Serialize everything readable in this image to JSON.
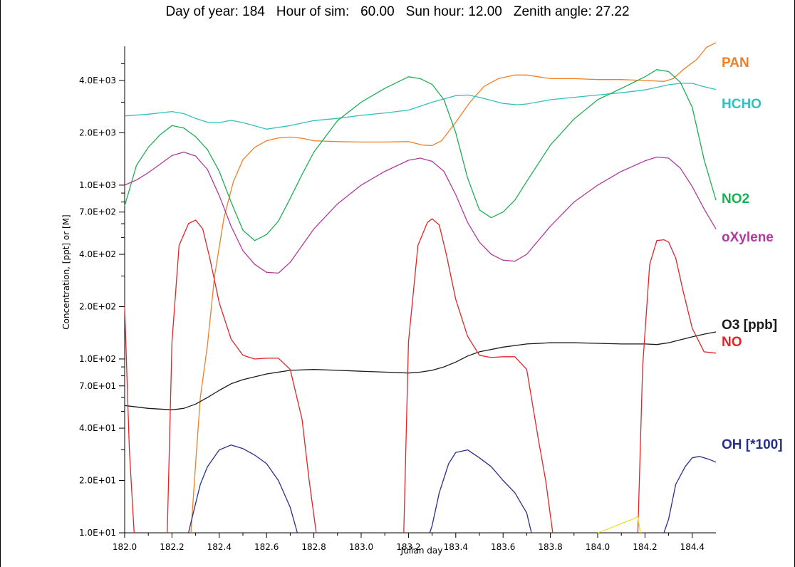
{
  "header": {
    "day_of_year": "Day of year: 184",
    "hour_of_sim": "Hour of sim:   60.00",
    "sun_hour": "Sun hour: 12.00",
    "zenith_angle": "Zenith angle: 27.22"
  },
  "chart_data": {
    "type": "line",
    "title": "",
    "xlabel": "Julian day",
    "ylabel": "Concentration, [ppt] or [M]",
    "xlim": [
      182.0,
      184.5
    ],
    "ylim": [
      10,
      6000
    ],
    "y_scale": "log",
    "grid": false,
    "x_ticks": [
      182.0,
      182.2,
      182.4,
      182.6,
      182.8,
      183.0,
      183.2,
      183.4,
      183.6,
      183.8,
      184.0,
      184.2,
      184.4
    ],
    "x_tick_labels": [
      "182.0",
      "182.2",
      "182.4",
      "182.6",
      "182.8",
      "183.0",
      "183.2",
      "183.4",
      "183.6",
      "183.8",
      "184.0",
      "184.2",
      "184.4"
    ],
    "y_ticks": [
      10,
      20,
      40,
      70,
      100,
      200,
      400,
      700,
      1000,
      2000,
      4000
    ],
    "y_tick_labels": [
      "1.0E+01",
      "2.0E+01",
      "4.0E+01",
      "7.0E+01",
      "1.0E+02",
      "2.0E+02",
      "4.0E+02",
      "7.0E+02",
      "1.0E+03",
      "2.0E+03",
      "4.0E+03"
    ],
    "y_minor_ticks": [
      30,
      50,
      60,
      80,
      90,
      300,
      500,
      600,
      800,
      900,
      3000,
      5000
    ],
    "series": [
      {
        "name": "PAN",
        "color": "#f07f26",
        "x": [
          182.28,
          182.3,
          182.32,
          182.35,
          182.38,
          182.42,
          182.46,
          182.5,
          182.55,
          182.6,
          182.65,
          182.7,
          182.75,
          182.8,
          182.9,
          183.0,
          183.1,
          183.2,
          183.26,
          183.3,
          183.34,
          183.4,
          183.46,
          183.52,
          183.58,
          183.65,
          183.7,
          183.8,
          183.9,
          184.0,
          184.1,
          184.2,
          184.28,
          184.32,
          184.36,
          184.42,
          184.46,
          184.5
        ],
        "y": [
          10,
          25,
          60,
          120,
          300,
          650,
          1050,
          1400,
          1650,
          1800,
          1870,
          1890,
          1860,
          1800,
          1780,
          1770,
          1770,
          1780,
          1700,
          1690,
          1800,
          2300,
          3000,
          3700,
          4100,
          4300,
          4300,
          4100,
          4100,
          4050,
          4050,
          4000,
          3950,
          4100,
          4600,
          5300,
          6200,
          6600
        ]
      },
      {
        "name": "HCHO",
        "color": "#33bfbf",
        "x": [
          182.0,
          182.1,
          182.2,
          182.25,
          182.3,
          182.35,
          182.4,
          182.45,
          182.5,
          182.6,
          182.7,
          182.8,
          182.9,
          183.0,
          183.1,
          183.2,
          183.3,
          183.4,
          183.45,
          183.5,
          183.6,
          183.66,
          183.7,
          183.8,
          183.9,
          184.0,
          184.1,
          184.2,
          184.3,
          184.35,
          184.4,
          184.45,
          184.5
        ],
        "y": [
          2500,
          2560,
          2650,
          2580,
          2420,
          2300,
          2290,
          2360,
          2290,
          2100,
          2200,
          2350,
          2420,
          2520,
          2600,
          2700,
          3000,
          3270,
          3300,
          3200,
          2950,
          2900,
          2930,
          3100,
          3200,
          3300,
          3400,
          3530,
          3780,
          3850,
          3850,
          3680,
          3550
        ]
      },
      {
        "name": "NO2",
        "color": "#1fae55",
        "x": [
          182.0,
          182.05,
          182.1,
          182.15,
          182.2,
          182.25,
          182.3,
          182.35,
          182.4,
          182.45,
          182.5,
          182.55,
          182.6,
          182.65,
          182.7,
          182.75,
          182.8,
          182.9,
          183.0,
          183.1,
          183.2,
          183.25,
          183.3,
          183.35,
          183.4,
          183.45,
          183.5,
          183.55,
          183.6,
          183.65,
          183.7,
          183.8,
          183.9,
          184.0,
          184.1,
          184.2,
          184.25,
          184.3,
          184.35,
          184.4,
          184.45,
          184.5
        ],
        "y": [
          760,
          1300,
          1650,
          1950,
          2200,
          2130,
          1900,
          1600,
          1200,
          800,
          550,
          480,
          520,
          620,
          840,
          1150,
          1550,
          2350,
          3000,
          3600,
          4200,
          4100,
          3800,
          3100,
          2000,
          1100,
          720,
          650,
          700,
          820,
          1050,
          1700,
          2400,
          3100,
          3600,
          4200,
          4620,
          4500,
          3900,
          2800,
          1400,
          820
        ]
      },
      {
        "name": "oXylene",
        "color": "#b03a9e",
        "x": [
          182.0,
          182.05,
          182.1,
          182.15,
          182.2,
          182.25,
          182.3,
          182.35,
          182.4,
          182.45,
          182.5,
          182.55,
          182.6,
          182.65,
          182.7,
          182.8,
          182.9,
          183.0,
          183.1,
          183.2,
          183.25,
          183.3,
          183.35,
          183.4,
          183.45,
          183.5,
          183.55,
          183.6,
          183.65,
          183.7,
          183.8,
          183.9,
          184.0,
          184.1,
          184.2,
          184.25,
          184.3,
          184.35,
          184.4,
          184.45,
          184.5
        ],
        "y": [
          1000,
          1070,
          1180,
          1320,
          1480,
          1550,
          1470,
          1230,
          870,
          580,
          420,
          350,
          315,
          312,
          360,
          560,
          780,
          1000,
          1200,
          1390,
          1430,
          1370,
          1200,
          880,
          610,
          470,
          400,
          370,
          365,
          400,
          580,
          800,
          1000,
          1200,
          1380,
          1450,
          1430,
          1250,
          980,
          730,
          560
        ]
      },
      {
        "name": "O3 [ppb]",
        "color": "#1a1a1a",
        "x": [
          182.0,
          182.1,
          182.2,
          182.25,
          182.3,
          182.35,
          182.4,
          182.45,
          182.5,
          182.6,
          182.7,
          182.8,
          182.9,
          183.0,
          183.1,
          183.2,
          183.25,
          183.3,
          183.35,
          183.4,
          183.45,
          183.5,
          183.6,
          183.7,
          183.8,
          183.9,
          184.0,
          184.1,
          184.2,
          184.25,
          184.3,
          184.35,
          184.4,
          184.45,
          184.5
        ],
        "y": [
          54,
          52,
          51,
          52,
          55,
          60,
          66,
          72,
          76,
          82,
          86,
          87,
          86,
          85,
          84,
          83,
          84,
          86,
          90,
          96,
          104,
          110,
          117,
          122,
          124,
          124,
          123,
          122,
          122,
          121,
          124,
          129,
          134,
          139,
          143
        ]
      },
      {
        "name": "NO",
        "color": "#e2242a",
        "x": [
          182.0,
          182.02,
          182.04,
          null,
          182.18,
          182.2,
          182.23,
          182.27,
          182.3,
          182.33,
          182.36,
          182.4,
          182.45,
          182.5,
          182.55,
          182.6,
          182.65,
          182.7,
          182.75,
          182.78,
          182.81,
          null,
          183.18,
          183.2,
          183.24,
          183.28,
          183.3,
          183.33,
          183.36,
          183.4,
          183.45,
          183.5,
          183.55,
          183.6,
          183.65,
          183.7,
          183.75,
          183.78,
          183.81,
          null,
          184.17,
          184.19,
          184.22,
          184.25,
          184.28,
          184.3,
          184.33,
          184.36,
          184.4,
          184.45,
          184.5
        ],
        "y": [
          200,
          30,
          10,
          null,
          10,
          125,
          450,
          600,
          630,
          560,
          380,
          210,
          130,
          105,
          100,
          101,
          101,
          87,
          45,
          20,
          10,
          null,
          10,
          125,
          450,
          610,
          640,
          590,
          400,
          220,
          135,
          105,
          102,
          103,
          103,
          87,
          34,
          20,
          10,
          null,
          10,
          90,
          350,
          480,
          485,
          470,
          380,
          250,
          150,
          110,
          108
        ]
      },
      {
        "name": "OH [*100]",
        "color": "#283088",
        "x": [
          182.27,
          182.29,
          182.32,
          182.35,
          182.4,
          182.45,
          182.5,
          182.55,
          182.6,
          182.65,
          182.7,
          182.73,
          null,
          183.29,
          183.3,
          183.33,
          183.37,
          183.4,
          183.45,
          183.5,
          183.55,
          183.6,
          183.65,
          183.7,
          183.72,
          null,
          184.28,
          184.3,
          184.33,
          184.37,
          184.4,
          184.43,
          184.47,
          184.5
        ],
        "y": [
          10,
          13,
          19,
          24,
          30,
          32,
          30.5,
          28,
          25,
          20,
          14,
          10,
          null,
          10,
          11,
          17,
          25,
          29,
          30,
          27,
          24,
          20,
          17,
          13,
          10,
          null,
          10,
          12,
          19,
          24,
          27,
          27.5,
          26.5,
          25.5
        ]
      },
      {
        "name": "",
        "color": "#f0e02a",
        "x": [
          184.0,
          184.05,
          184.1,
          184.15,
          184.17,
          184.18
        ],
        "y": [
          10,
          10.6,
          11.3,
          12,
          12.4,
          10
        ]
      }
    ],
    "legend": {
      "placement": "right, at line ends",
      "entries": [
        "PAN",
        "HCHO",
        "NO2",
        "oXylene",
        "O3 [ppb]",
        "NO",
        "OH [*100]"
      ],
      "colors": [
        "#f07f26",
        "#33bfbf",
        "#1fae55",
        "#b03a9e",
        "#1a1a1a",
        "#e2242a",
        "#283088"
      ]
    }
  }
}
